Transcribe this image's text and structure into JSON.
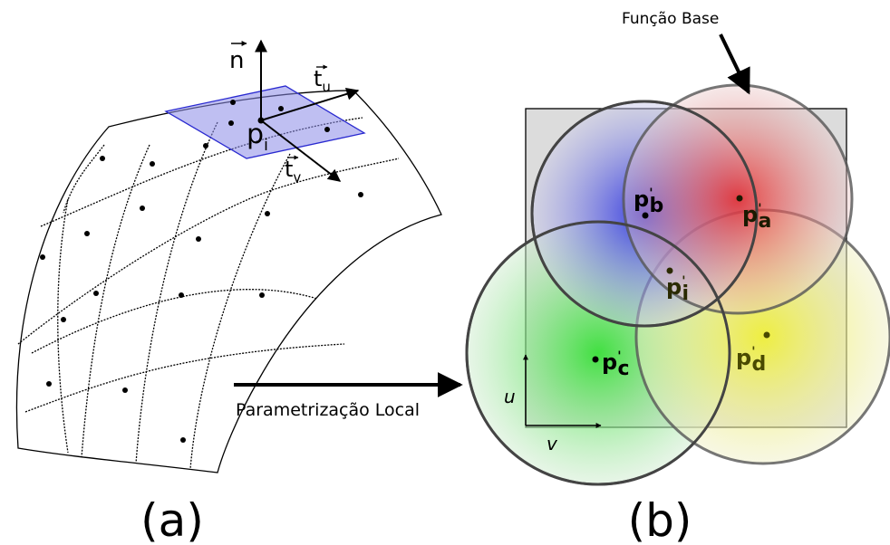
{
  "left_panel": {
    "caption": "(a)",
    "normal": "n",
    "tangent_u": {
      "base": "t",
      "sub": "u"
    },
    "tangent_v": {
      "base": "t",
      "sub": "v"
    },
    "point": {
      "base": "p",
      "sub": "i"
    }
  },
  "arrow_label": "Parametrização Local",
  "right_panel": {
    "caption": "(b)",
    "basis_label": "Função Base",
    "axis_u": "u",
    "axis_v": "v",
    "points": [
      {
        "base": "p",
        "prime": "'",
        "sub": "b"
      },
      {
        "base": "p",
        "prime": "'",
        "sub": "a"
      },
      {
        "base": "p",
        "prime": "'",
        "sub": "i"
      },
      {
        "base": "p",
        "prime": "'",
        "sub": "c"
      },
      {
        "base": "p",
        "prime": "'",
        "sub": "d"
      }
    ]
  }
}
